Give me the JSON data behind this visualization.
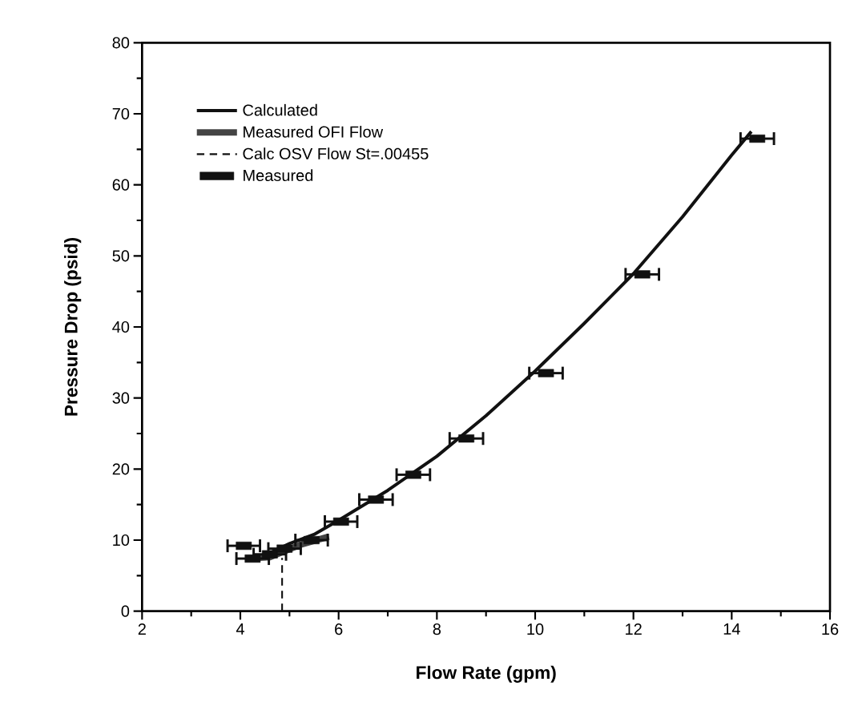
{
  "chart_data": {
    "type": "line",
    "xlabel": "Flow  Rate  (gpm)",
    "ylabel": "Pressure  Drop  (psid)",
    "xlim": [
      2,
      16
    ],
    "xticks": [
      2,
      4,
      6,
      8,
      10,
      12,
      14,
      16
    ],
    "ylim": [
      0,
      80
    ],
    "yticks": [
      0,
      10,
      20,
      30,
      40,
      50,
      60,
      70,
      80
    ],
    "grid": false,
    "legend": "top left",
    "series": [
      {
        "name": "Calculated",
        "line_style": "solid",
        "color": "#111111",
        "x": [
          4.6,
          5,
          5.5,
          6,
          7,
          8,
          9,
          10,
          11,
          12,
          13,
          14,
          14.4
        ],
        "values": [
          8.2,
          9.5,
          10.8,
          12.8,
          17,
          21.8,
          27.5,
          33.8,
          40.5,
          47.5,
          55.5,
          64.2,
          67.5
        ]
      },
      {
        "name": "Measured OFI Flow",
        "line_style": "solid",
        "color": "#444444",
        "x": [
          4.1,
          4.6,
          5.2,
          5.8
        ],
        "values": [
          7.4,
          7.6,
          9.3,
          10.5
        ]
      },
      {
        "name": "Calc OSV Flow St=.00455",
        "line_style": "dashed",
        "color": "#111111",
        "x": [
          4.85,
          4.85
        ],
        "values": [
          0,
          7.5
        ]
      },
      {
        "name": "Measured",
        "type": "scatter",
        "marker": "square",
        "color": "#111111",
        "x": [
          4.07,
          4.25,
          4.6,
          4.9,
          5.45,
          6.05,
          6.76,
          7.52,
          8.6,
          10.22,
          12.18,
          14.52
        ],
        "values": [
          9.2,
          7.4,
          8.0,
          8.8,
          10.0,
          12.6,
          15.7,
          19.2,
          24.3,
          33.5,
          47.4,
          66.5
        ],
        "xerrors": [
          0.33,
          0.33,
          0.33,
          0.33,
          0.33,
          0.33,
          0.34,
          0.34,
          0.34,
          0.34,
          0.34,
          0.34
        ]
      }
    ]
  }
}
